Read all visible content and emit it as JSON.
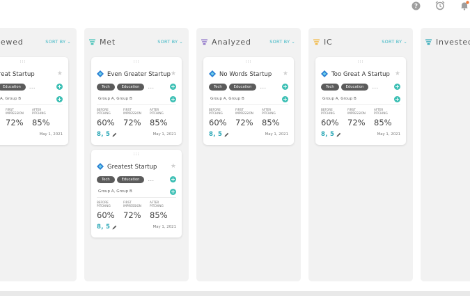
{
  "topbar": {
    "icons": [
      "help-icon",
      "alarm-clock-icon",
      "bell-icon"
    ],
    "colors": {
      "icon": "#9e9e9e",
      "notification_dot": "#f07a3a"
    }
  },
  "columns": [
    {
      "title": "iewed",
      "sort_label": "SORT BY",
      "funnel_color": "",
      "cards": [
        {
          "name": "reat Startup",
          "tags": [
            "",
            "Education"
          ],
          "more": "...",
          "groups": "A, Group B",
          "metrics": [
            {
              "label": "",
              "value": ""
            },
            {
              "label": "FIRST IMPRESSION",
              "value": "72%"
            },
            {
              "label": "AFTER PITCHING",
              "value": "85%"
            }
          ],
          "score": "",
          "date": "May 1, 2021"
        }
      ]
    },
    {
      "title": "Met",
      "sort_label": "SORT BY",
      "funnel_color": "#3cbfb4",
      "cards": [
        {
          "name": "Even Greater Startup",
          "tags": [
            "Tech",
            "Education"
          ],
          "more": "...",
          "groups": "Group A, Group B",
          "metrics": [
            {
              "label": "BEFORE PITCHING",
              "value": "60%"
            },
            {
              "label": "FIRST IMPRESSION",
              "value": "72%"
            },
            {
              "label": "AFTER PITCHING",
              "value": "85%"
            }
          ],
          "score": "8, 5",
          "date": "May 1, 2021"
        },
        {
          "name": "Greatest Startup",
          "tags": [
            "Tech",
            "Education"
          ],
          "more": "...",
          "groups": "Group A, Group B",
          "metrics": [
            {
              "label": "BEFORE PITCHING",
              "value": "60%"
            },
            {
              "label": "FIRST IMPRESSION",
              "value": "72%"
            },
            {
              "label": "AFTER PITCHING",
              "value": "85%"
            }
          ],
          "score": "8, 5",
          "date": "May 1, 2021"
        }
      ]
    },
    {
      "title": "Analyzed",
      "sort_label": "SORT BY",
      "funnel_color": "#8a6fc7",
      "cards": [
        {
          "name": "No Words Startup",
          "tags": [
            "Tech",
            "Education"
          ],
          "more": "...",
          "groups": "Group A, Group B",
          "metrics": [
            {
              "label": "BEFORE PITCHING",
              "value": "60%"
            },
            {
              "label": "FIRST IMPRESSION",
              "value": "72%"
            },
            {
              "label": "AFTER PITCHING",
              "value": "85%"
            }
          ],
          "score": "8, 5",
          "date": "May 1, 2021"
        }
      ]
    },
    {
      "title": "IC",
      "sort_label": "SORT BY",
      "funnel_color": "#f2b63c",
      "cards": [
        {
          "name": "Too Great A Startup",
          "tags": [
            "Tech",
            "Education"
          ],
          "more": "...",
          "groups": "Group A, Group B",
          "metrics": [
            {
              "label": "BEFORE PITCHING",
              "value": "60%"
            },
            {
              "label": "FIRST IMPRESSION",
              "value": "72%"
            },
            {
              "label": "AFTER PITCHING",
              "value": "85%"
            }
          ],
          "score": "8, 5",
          "date": "May 1, 2021"
        }
      ]
    },
    {
      "title": "Invested",
      "sort_label": "",
      "funnel_color": "#2aa7b6",
      "cards": []
    }
  ],
  "colors": {
    "accent": "#3cbfb4",
    "score": "#2aa7b6",
    "tag_bg": "#5b5b5b",
    "column_bg": "#f2f2f2"
  }
}
